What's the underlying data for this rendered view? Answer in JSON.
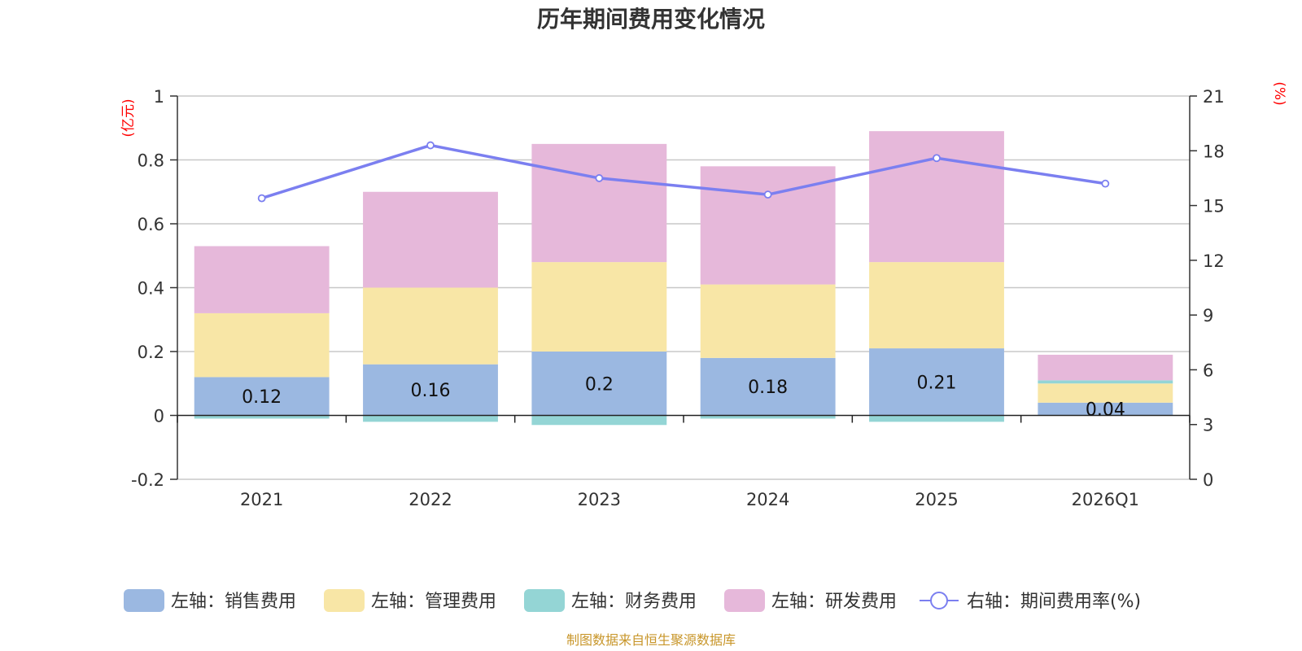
{
  "chart_data": {
    "type": "bar",
    "title": "历年期间费用变化情况",
    "categories": [
      "2021",
      "2022",
      "2023",
      "2024",
      "2025",
      "2026Q1"
    ],
    "left_axis": {
      "unit": "(亿元)",
      "ylim": [
        -0.2,
        1
      ],
      "ticks": [
        -0.2,
        0,
        0.2,
        0.4,
        0.6,
        0.8,
        1
      ],
      "tick_labels": [
        "-0.2",
        "0",
        "0.2",
        "0.4",
        "0.6",
        "0.8",
        "1"
      ]
    },
    "right_axis": {
      "unit": "(%)",
      "ylim": [
        0,
        21
      ],
      "ticks": [
        0,
        3,
        6,
        9,
        12,
        15,
        18,
        21
      ],
      "tick_labels": [
        "0",
        "3",
        "6",
        "9",
        "12",
        "15",
        "18",
        "21"
      ]
    },
    "series": [
      {
        "name": "左轴：销售费用",
        "axis": "left",
        "color": "#9bb8e1",
        "values": [
          0.12,
          0.16,
          0.2,
          0.18,
          0.21,
          0.04
        ],
        "labels": [
          "0.12",
          "0.16",
          "0.2",
          "0.18",
          "0.21",
          "0.04"
        ]
      },
      {
        "name": "左轴：管理费用",
        "axis": "left",
        "color": "#f8e6a6",
        "values": [
          0.2,
          0.24,
          0.28,
          0.23,
          0.27,
          0.06
        ]
      },
      {
        "name": "左轴：财务费用",
        "axis": "left",
        "color": "#94d5d5",
        "values": [
          -0.01,
          -0.02,
          -0.03,
          -0.01,
          -0.02,
          0.01
        ]
      },
      {
        "name": "左轴：研发费用",
        "axis": "left",
        "color": "#e6b8da",
        "values": [
          0.21,
          0.3,
          0.37,
          0.37,
          0.41,
          0.08
        ]
      },
      {
        "name": "右轴：期间费用率(%)",
        "axis": "right",
        "type": "line",
        "color": "#7b7ff0",
        "values": [
          15.4,
          18.3,
          16.5,
          15.6,
          17.6,
          16.2
        ]
      }
    ],
    "grid": true,
    "legend_position": "bottom"
  },
  "source": "制图数据来自恒生聚源数据库"
}
